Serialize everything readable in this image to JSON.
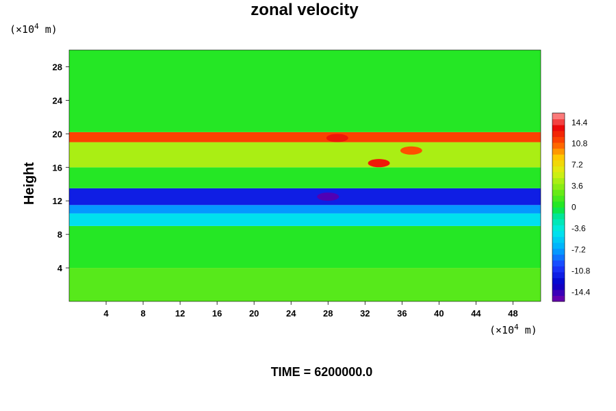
{
  "chart_data": {
    "type": "heatmap",
    "title": "zonal velocity",
    "ylabel": "Height",
    "xlabel": "",
    "y_unit": {
      "prefix": "(×10",
      "exp": "4",
      "suffix": " m)"
    },
    "x_unit": {
      "prefix": "(×10",
      "exp": "4",
      "suffix": " m)"
    },
    "x_ticks": [
      "4",
      "8",
      "12",
      "16",
      "20",
      "24",
      "28",
      "32",
      "36",
      "40",
      "44",
      "48"
    ],
    "y_ticks": [
      "4",
      "8",
      "12",
      "16",
      "20",
      "24",
      "28"
    ],
    "xlim": [
      0,
      51
    ],
    "ylim": [
      0,
      30
    ],
    "colorbar": {
      "ticks": [
        "14.4",
        "10.8",
        "7.2",
        "3.6",
        "0",
        "-3.6",
        "-7.2",
        "-10.8",
        "-14.4"
      ],
      "range": [
        -16,
        16
      ]
    },
    "bands": [
      {
        "y": [
          0,
          4
        ],
        "value": 2.0
      },
      {
        "y": [
          4,
          9
        ],
        "value": 0.5
      },
      {
        "y": [
          9,
          10.5
        ],
        "value": -4.5
      },
      {
        "y": [
          10.5,
          11.5
        ],
        "value": -7.5
      },
      {
        "y": [
          11.5,
          13.5
        ],
        "value": -11.5
      },
      {
        "y": [
          13.5,
          16
        ],
        "value": 0.5
      },
      {
        "y": [
          16,
          19
        ],
        "value": 4.5
      },
      {
        "y": [
          19,
          20.2
        ],
        "value": 11.5
      },
      {
        "y": [
          20.2,
          30
        ],
        "value": 0.5
      }
    ],
    "features": [
      {
        "x": 33.5,
        "y": 16.5,
        "value": 13
      },
      {
        "x": 37,
        "y": 18,
        "value": 11
      },
      {
        "x": 28,
        "y": 12.5,
        "value": -15
      },
      {
        "x": 29,
        "y": 19.5,
        "value": 13
      }
    ]
  },
  "footer": {
    "time": "TIME = 6200000.0"
  }
}
